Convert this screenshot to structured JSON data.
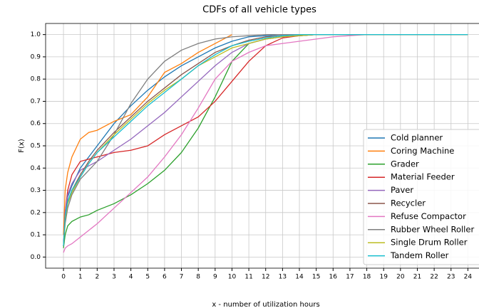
{
  "chart_data": {
    "type": "line",
    "title": "CDFs of all vehicle types",
    "x_label": "x - number of utilization hours",
    "y_label": "F(x)",
    "x": [
      0,
      0.1,
      0.25,
      0.5,
      1,
      1.5,
      2,
      3,
      4,
      5,
      6,
      7,
      8,
      9,
      10,
      11,
      12,
      13,
      14,
      15,
      16,
      18,
      20,
      22,
      24
    ],
    "series": [
      {
        "name": "Cold planner",
        "color": "#1f77b4",
        "values": [
          0.05,
          0.2,
          0.27,
          0.32,
          0.4,
          0.45,
          0.5,
          0.6,
          0.68,
          0.75,
          0.81,
          0.86,
          0.9,
          0.94,
          0.97,
          0.99,
          0.995,
          1,
          1,
          1,
          1,
          1,
          1,
          1,
          1
        ]
      },
      {
        "name": "Coring Machine",
        "color": "#ff7f0e",
        "values": [
          0.1,
          0.3,
          0.38,
          0.45,
          0.53,
          0.56,
          0.57,
          0.61,
          0.64,
          0.72,
          0.83,
          0.87,
          0.92,
          0.96,
          1,
          null,
          null,
          null,
          null,
          null,
          null,
          null,
          null,
          null,
          null
        ]
      },
      {
        "name": "Grader",
        "color": "#2ca02c",
        "values": [
          0.04,
          0.1,
          0.14,
          0.16,
          0.18,
          0.19,
          0.21,
          0.24,
          0.28,
          0.33,
          0.39,
          0.47,
          0.58,
          0.72,
          0.88,
          0.96,
          0.98,
          0.99,
          0.995,
          1,
          1,
          1,
          1,
          1,
          1
        ]
      },
      {
        "name": "Material Feeder",
        "color": "#d62728",
        "values": [
          0.05,
          0.2,
          0.3,
          0.37,
          0.43,
          0.44,
          0.45,
          0.47,
          0.48,
          0.5,
          0.55,
          0.59,
          0.63,
          0.7,
          0.79,
          0.88,
          0.95,
          0.985,
          0.995,
          1,
          1,
          1,
          1,
          1,
          1
        ]
      },
      {
        "name": "Paver",
        "color": "#9467bd",
        "values": [
          0.05,
          0.2,
          0.28,
          0.33,
          0.39,
          0.41,
          0.43,
          0.48,
          0.53,
          0.59,
          0.65,
          0.72,
          0.79,
          0.86,
          0.92,
          0.96,
          0.98,
          0.99,
          0.995,
          1,
          1,
          1,
          1,
          1,
          1
        ]
      },
      {
        "name": "Recycler",
        "color": "#8c564b",
        "values": [
          0.05,
          0.18,
          0.25,
          0.3,
          0.37,
          0.43,
          0.48,
          0.56,
          0.63,
          0.7,
          0.76,
          0.82,
          0.87,
          0.92,
          0.95,
          0.975,
          0.99,
          0.995,
          1,
          1,
          1,
          1,
          1,
          1,
          1
        ]
      },
      {
        "name": "Refuse Compactor",
        "color": "#e377c2",
        "values": [
          0.02,
          0.04,
          0.05,
          0.06,
          0.09,
          0.12,
          0.15,
          0.22,
          0.29,
          0.36,
          0.45,
          0.55,
          0.67,
          0.8,
          0.88,
          0.92,
          0.95,
          0.96,
          0.97,
          0.98,
          0.99,
          1,
          1,
          1,
          1
        ]
      },
      {
        "name": "Rubber Wheel Roller",
        "color": "#7f7f7f",
        "values": [
          0.05,
          0.15,
          0.22,
          0.28,
          0.35,
          0.39,
          0.43,
          0.55,
          0.69,
          0.8,
          0.88,
          0.93,
          0.96,
          0.98,
          0.99,
          0.995,
          1,
          1,
          1,
          1,
          1,
          1,
          1,
          1,
          1
        ]
      },
      {
        "name": "Single Drum Roller",
        "color": "#bcbd22",
        "values": [
          0.05,
          0.17,
          0.24,
          0.29,
          0.36,
          0.42,
          0.47,
          0.55,
          0.62,
          0.69,
          0.75,
          0.8,
          0.86,
          0.9,
          0.94,
          0.96,
          0.98,
          0.99,
          0.995,
          1,
          1,
          1,
          1,
          1,
          1
        ]
      },
      {
        "name": "Tandem Roller",
        "color": "#17becf",
        "values": [
          0.05,
          0.18,
          0.25,
          0.3,
          0.36,
          0.42,
          0.47,
          0.54,
          0.61,
          0.68,
          0.74,
          0.8,
          0.86,
          0.91,
          0.95,
          0.97,
          0.985,
          0.995,
          1,
          1,
          1,
          1,
          1,
          1,
          1
        ]
      }
    ],
    "xlim": [
      -1.06,
      24.66
    ],
    "ylim": [
      -0.05,
      1.05
    ],
    "xticks": [
      0,
      1,
      2,
      3,
      4,
      5,
      6,
      7,
      8,
      9,
      10,
      11,
      12,
      13,
      14,
      15,
      16,
      17,
      18,
      19,
      20,
      21,
      22,
      23,
      24
    ],
    "yticks": [
      {
        "value": 0,
        "label": "0.0"
      },
      0.1,
      0.2,
      0.3,
      0.4,
      0.5,
      0.6,
      0.7,
      0.8,
      0.9,
      {
        "value": 1,
        "label": "1.0"
      }
    ],
    "grid": true,
    "legend": "lower right"
  }
}
